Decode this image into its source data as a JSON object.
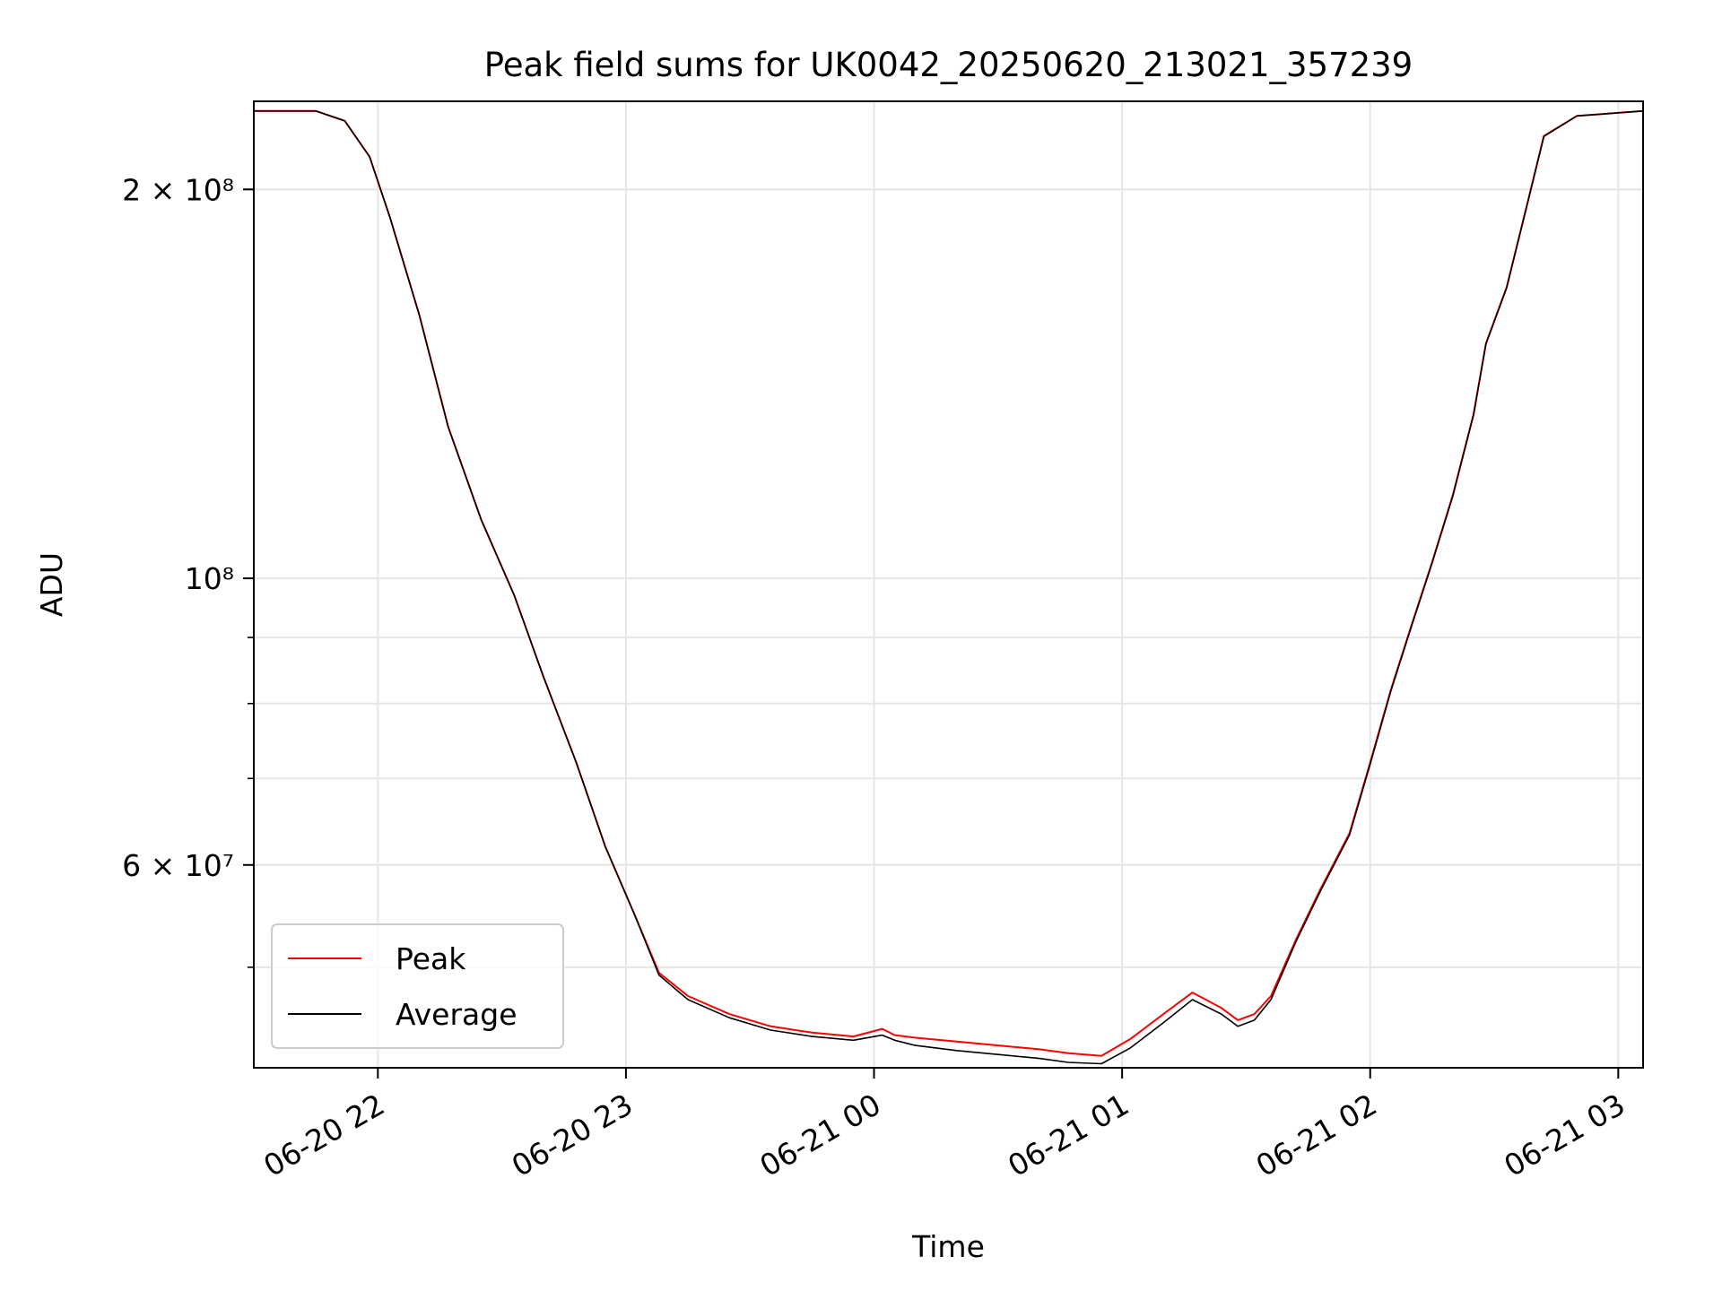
{
  "chart_data": {
    "type": "line",
    "title": "Peak field sums for UK0042_20250620_213021_357239",
    "xlabel": "Time",
    "ylabel": "ADU",
    "yscale": "log",
    "xlim": [
      "2025-06-20 21:30",
      "2025-06-21 03:06"
    ],
    "ylim": [
      41800000,
      234000000
    ],
    "x_ticks": [
      {
        "value": "2025-06-20 22:00",
        "label": "06-20 22"
      },
      {
        "value": "2025-06-20 23:00",
        "label": "06-20 23"
      },
      {
        "value": "2025-06-21 00:00",
        "label": "06-21 00"
      },
      {
        "value": "2025-06-21 01:00",
        "label": "06-21 01"
      },
      {
        "value": "2025-06-21 02:00",
        "label": "06-21 02"
      },
      {
        "value": "2025-06-21 03:00",
        "label": "06-21 03"
      }
    ],
    "y_ticks_major": [
      {
        "value": 200000000,
        "label": "2 × 10⁸"
      },
      {
        "value": 100000000,
        "label": "10⁸"
      },
      {
        "value": 60000000,
        "label": "6 × 10⁷"
      }
    ],
    "y_ticks_minor": [
      50000000,
      60000000,
      70000000,
      80000000,
      90000000,
      200000000
    ],
    "grid": true,
    "legend": {
      "position": "lower-left"
    },
    "series": [
      {
        "name": "Peak",
        "color": "#ff0000",
        "x": [
          "2025-06-20 21:30",
          "2025-06-20 21:45",
          "2025-06-20 21:52",
          "2025-06-20 21:58",
          "2025-06-20 22:03",
          "2025-06-20 22:10",
          "2025-06-20 22:17",
          "2025-06-20 22:25",
          "2025-06-20 22:33",
          "2025-06-20 22:40",
          "2025-06-20 22:48",
          "2025-06-20 22:55",
          "2025-06-20 23:02",
          "2025-06-20 23:08",
          "2025-06-20 23:15",
          "2025-06-20 23:25",
          "2025-06-20 23:35",
          "2025-06-20 23:45",
          "2025-06-20 23:55",
          "2025-06-21 00:02",
          "2025-06-21 00:05",
          "2025-06-21 00:10",
          "2025-06-21 00:20",
          "2025-06-21 00:30",
          "2025-06-21 00:40",
          "2025-06-21 00:47",
          "2025-06-21 00:55",
          "2025-06-21 01:02",
          "2025-06-21 01:10",
          "2025-06-21 01:17",
          "2025-06-21 01:24",
          "2025-06-21 01:28",
          "2025-06-21 01:32",
          "2025-06-21 01:36",
          "2025-06-21 01:42",
          "2025-06-21 01:48",
          "2025-06-21 01:55",
          "2025-06-21 02:00",
          "2025-06-21 02:05",
          "2025-06-21 02:10",
          "2025-06-21 02:15",
          "2025-06-21 02:20",
          "2025-06-21 02:25",
          "2025-06-21 02:28",
          "2025-06-21 02:33",
          "2025-06-21 02:38",
          "2025-06-21 02:42",
          "2025-06-21 02:50",
          "2025-06-21 03:06"
        ],
        "values": [
          230000000,
          230000000,
          226000000,
          212000000,
          190000000,
          160000000,
          131000000,
          111000000,
          97000000,
          84000000,
          72000000,
          62000000,
          55000000,
          49500000,
          47500000,
          46000000,
          45000000,
          44500000,
          44200000,
          44800000,
          44300000,
          44100000,
          43800000,
          43500000,
          43200000,
          42900000,
          42700000,
          44000000,
          46000000,
          47800000,
          46500000,
          45500000,
          46000000,
          47500000,
          52500000,
          57500000,
          63500000,
          72000000,
          82000000,
          92000000,
          103000000,
          116000000,
          134000000,
          152000000,
          168000000,
          195000000,
          220000000,
          228000000,
          230000000
        ]
      },
      {
        "name": "Average",
        "color": "#000000",
        "x": [
          "2025-06-20 21:30",
          "2025-06-20 21:45",
          "2025-06-20 21:52",
          "2025-06-20 21:58",
          "2025-06-20 22:03",
          "2025-06-20 22:10",
          "2025-06-20 22:17",
          "2025-06-20 22:25",
          "2025-06-20 22:33",
          "2025-06-20 22:40",
          "2025-06-20 22:48",
          "2025-06-20 22:55",
          "2025-06-20 23:02",
          "2025-06-20 23:08",
          "2025-06-20 23:15",
          "2025-06-20 23:25",
          "2025-06-20 23:35",
          "2025-06-20 23:45",
          "2025-06-20 23:55",
          "2025-06-21 00:02",
          "2025-06-21 00:05",
          "2025-06-21 00:10",
          "2025-06-21 00:20",
          "2025-06-21 00:30",
          "2025-06-21 00:40",
          "2025-06-21 00:47",
          "2025-06-21 00:55",
          "2025-06-21 01:02",
          "2025-06-21 01:10",
          "2025-06-21 01:17",
          "2025-06-21 01:24",
          "2025-06-21 01:28",
          "2025-06-21 01:32",
          "2025-06-21 01:36",
          "2025-06-21 01:42",
          "2025-06-21 01:48",
          "2025-06-21 01:55",
          "2025-06-21 02:00",
          "2025-06-21 02:05",
          "2025-06-21 02:10",
          "2025-06-21 02:15",
          "2025-06-21 02:20",
          "2025-06-21 02:25",
          "2025-06-21 02:28",
          "2025-06-21 02:33",
          "2025-06-21 02:38",
          "2025-06-21 02:42",
          "2025-06-21 02:50",
          "2025-06-21 03:06"
        ],
        "values": [
          230000000,
          230000000,
          226000000,
          212000000,
          190000000,
          160000000,
          131000000,
          111000000,
          97000000,
          84000000,
          72000000,
          62000000,
          55000000,
          49300000,
          47200000,
          45700000,
          44700000,
          44200000,
          43900000,
          44300000,
          43900000,
          43500000,
          43100000,
          42800000,
          42500000,
          42200000,
          42100000,
          43300000,
          45300000,
          47200000,
          46000000,
          45000000,
          45500000,
          47200000,
          52300000,
          57300000,
          63300000,
          71800000,
          81800000,
          91800000,
          102800000,
          115800000,
          133800000,
          151800000,
          167800000,
          194800000,
          219800000,
          228000000,
          230000000
        ]
      }
    ]
  }
}
